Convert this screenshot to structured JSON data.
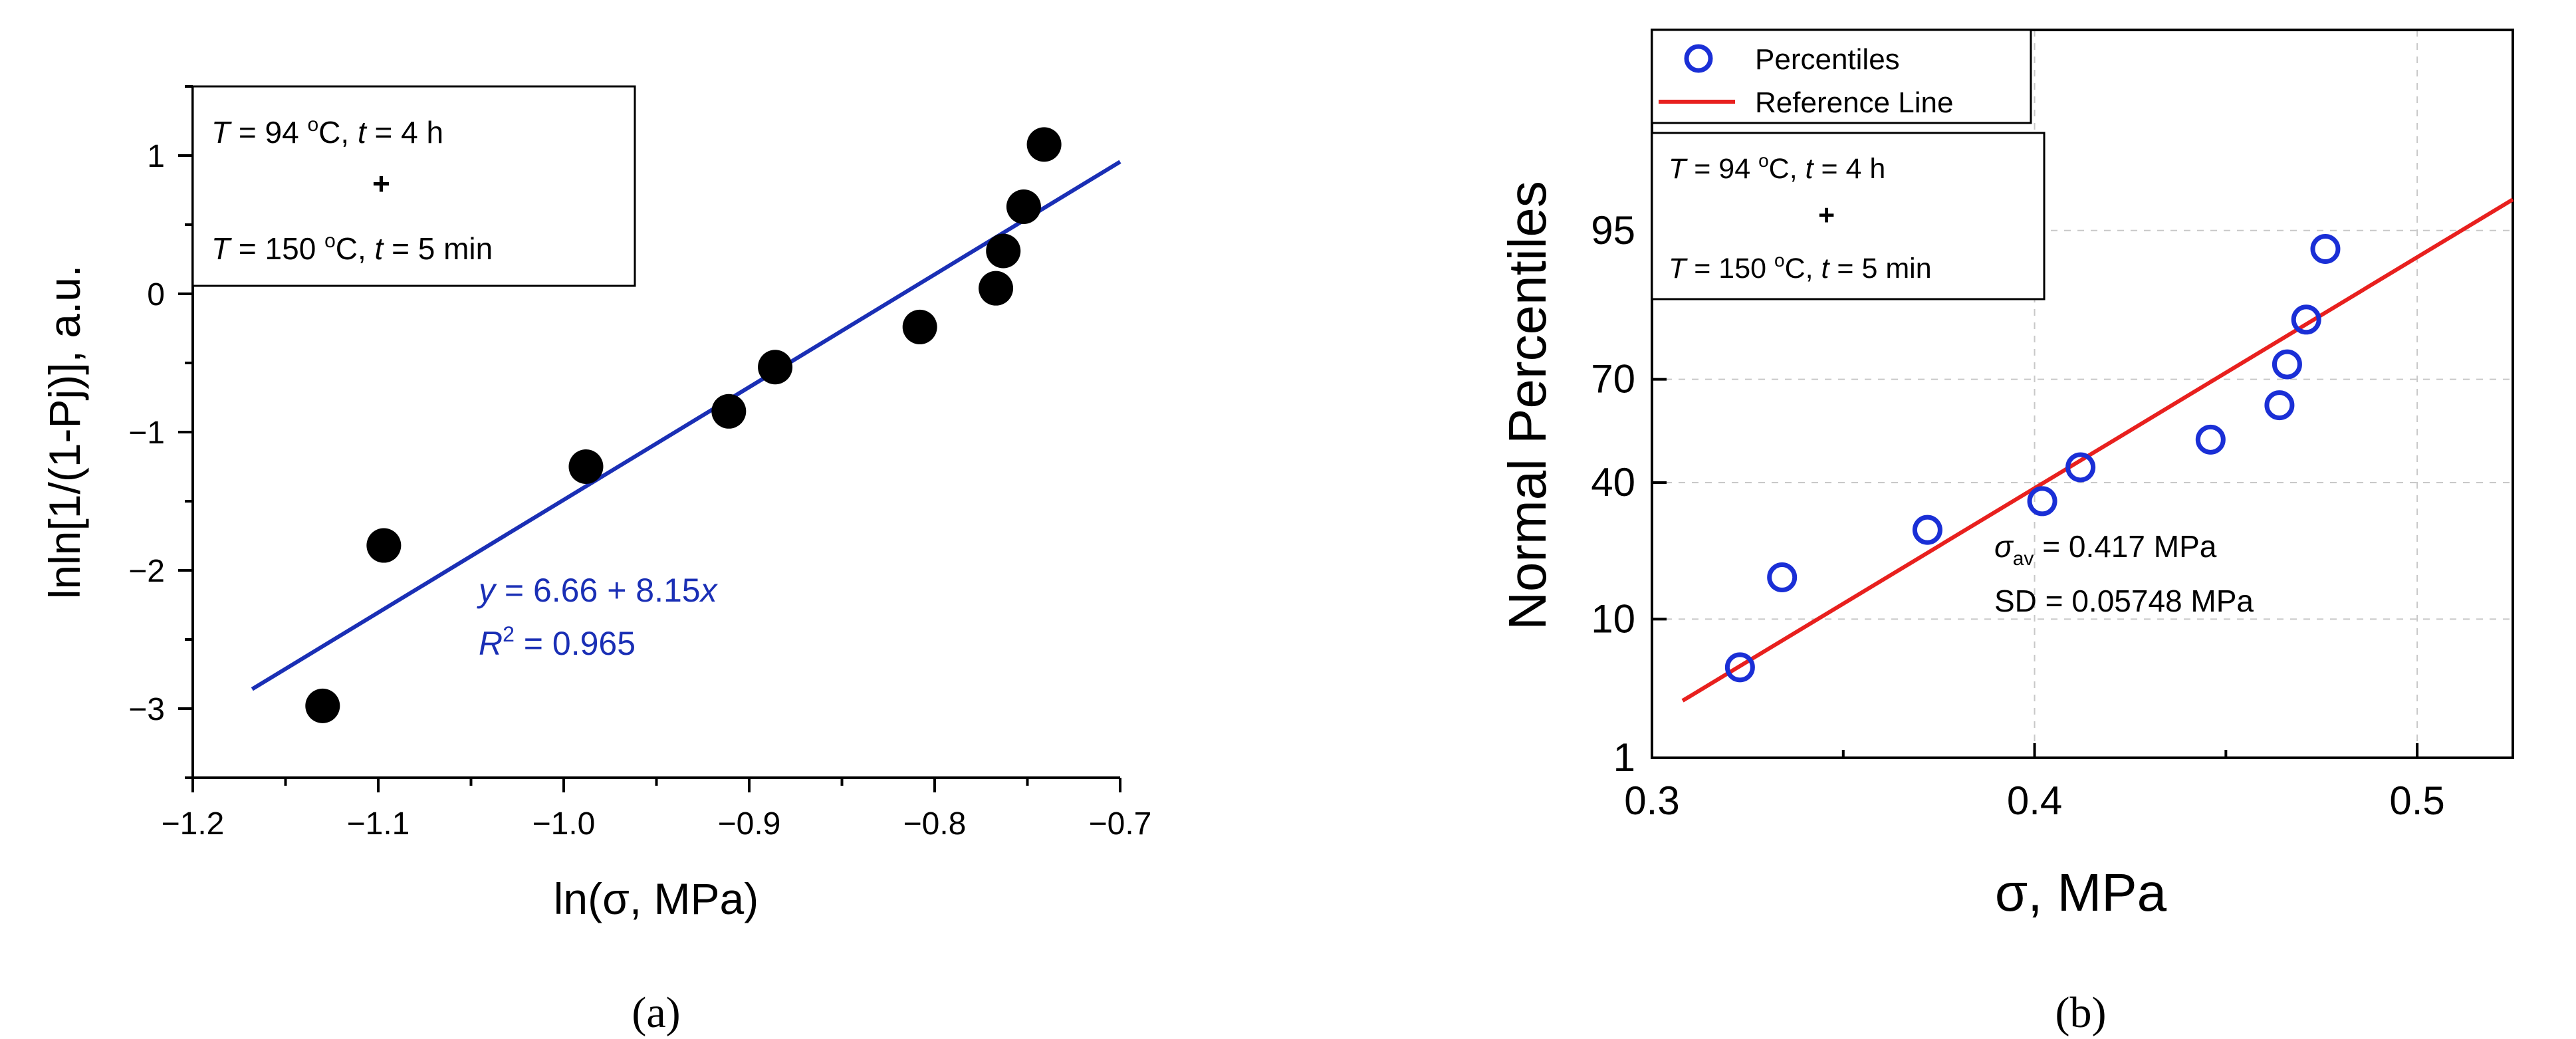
{
  "chart_data": [
    {
      "type": "scatter",
      "panel_label": "(a)",
      "xlabel": "ln(σ, MPa)",
      "ylabel": "lnln[1/(1-Pj)], a.u.",
      "xlim": [
        -1.2,
        -0.7
      ],
      "ylim": [
        -3.5,
        1.5
      ],
      "xticks": [
        "−1.2",
        "−1.1",
        "−1.0",
        "−0.9",
        "−0.8",
        "−0.7"
      ],
      "yticks": [
        "−3",
        "−2",
        "−1",
        "0",
        "1"
      ],
      "points": [
        {
          "x": -1.13,
          "y": -2.98
        },
        {
          "x": -1.097,
          "y": -1.82
        },
        {
          "x": -0.988,
          "y": -1.25
        },
        {
          "x": -0.911,
          "y": -0.85
        },
        {
          "x": -0.886,
          "y": -0.53
        },
        {
          "x": -0.808,
          "y": -0.24
        },
        {
          "x": -0.767,
          "y": 0.04
        },
        {
          "x": -0.763,
          "y": 0.31
        },
        {
          "x": -0.752,
          "y": 0.63
        },
        {
          "x": -0.741,
          "y": 1.08
        }
      ],
      "fit": {
        "intercept": 6.66,
        "slope": 8.15,
        "x_range": [
          -1.168,
          -0.7
        ]
      },
      "equation_text": [
        "y",
        " = 6.66 + 8.15",
        "x"
      ],
      "r2_text": [
        "R",
        "2",
        " = 0.965"
      ],
      "condition_box": {
        "line1": [
          "T",
          " = 94 ",
          "o",
          "C, ",
          "t",
          " = 4 h"
        ],
        "plus": "+",
        "line2": [
          "T",
          " = 150 ",
          "o",
          "C, ",
          "t",
          " = 5 min"
        ]
      },
      "colors": {
        "points": "#000000",
        "fit": "#1a2fb5",
        "annotation": "#1a2fb5"
      }
    },
    {
      "type": "scatter",
      "panel_label": "(b)",
      "xlabel": "σ, MPa",
      "ylabel": "Normal Percentiles",
      "xlim": [
        0.3,
        0.525
      ],
      "xticks": [
        "0.3",
        "0.4",
        "0.5"
      ],
      "y_scale": "normal probability",
      "yticks": [
        "1",
        "10",
        "40",
        "70",
        "95"
      ],
      "points": [
        {
          "x": 0.323,
          "y": 5
        },
        {
          "x": 0.334,
          "y": 16.67
        },
        {
          "x": 0.372,
          "y": 27.1
        },
        {
          "x": 0.402,
          "y": 34.7
        },
        {
          "x": 0.412,
          "y": 44.5
        },
        {
          "x": 0.446,
          "y": 52.8
        },
        {
          "x": 0.464,
          "y": 62.9
        },
        {
          "x": 0.466,
          "y": 73.8
        },
        {
          "x": 0.471,
          "y": 83.5
        },
        {
          "x": 0.476,
          "y": 93.4
        }
      ],
      "reference_line": {
        "mean": 0.417,
        "sd": 0.05748,
        "x_range": [
          0.308,
          0.525
        ]
      },
      "legend": [
        {
          "label": "Percentiles",
          "marker": "circle"
        },
        {
          "label": "Reference Line",
          "marker": "line"
        }
      ],
      "stats_text": {
        "sigma": "σ",
        "sub": "av",
        "mean_text": " = 0.417 MPa",
        "sd_text": "SD = 0.05748 MPa"
      },
      "condition_box": {
        "line1": [
          "T",
          " = 94 ",
          "o",
          "C, ",
          "t",
          " = 4 h"
        ],
        "plus": "+",
        "line2": [
          "T",
          " = 150 ",
          "o",
          "C, ",
          "t",
          " = 5 min"
        ]
      },
      "colors": {
        "points": "#1a2fd6",
        "reference": "#e8201e"
      }
    }
  ]
}
